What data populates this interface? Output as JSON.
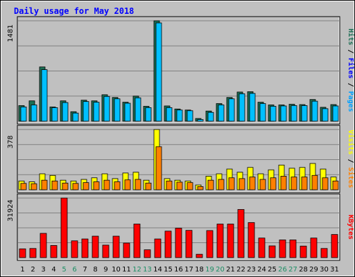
{
  "chart_data": {
    "type": "bar",
    "title": "Daily usage for May 2018",
    "days": [
      "1",
      "2",
      "3",
      "4",
      "5",
      "6",
      "7",
      "8",
      "9",
      "10",
      "11",
      "12",
      "13",
      "14",
      "15",
      "16",
      "17",
      "18",
      "19",
      "20",
      "21",
      "22",
      "23",
      "24",
      "25",
      "26",
      "27",
      "28",
      "29",
      "30",
      "31"
    ],
    "weekend_days": [
      "5",
      "6",
      "12",
      "13",
      "19",
      "20",
      "26",
      "27"
    ],
    "panels": [
      {
        "name": "hits-files-pages",
        "max_label": "1481",
        "ymax": 1481,
        "legend": [
          "Pages",
          "/",
          "Files",
          "/",
          "Hits"
        ],
        "series": [
          {
            "name": "Hits",
            "color": "#1c6e54",
            "values": [
              230,
              300,
              800,
              210,
              300,
              140,
              310,
              300,
              390,
              350,
              280,
              370,
              220,
              1481,
              225,
              180,
              165,
              40,
              150,
              260,
              350,
              430,
              435,
              280,
              240,
              240,
              250,
              245,
              320,
              205,
              245
            ]
          },
          {
            "name": "Files",
            "color": "#00c0ff",
            "values": [
              210,
              240,
              760,
              200,
              275,
              120,
              290,
              280,
              365,
              330,
              265,
              345,
              200,
              1450,
              200,
              165,
              155,
              25,
              130,
              240,
              330,
              405,
              410,
              260,
              220,
              225,
              230,
              230,
              295,
              185,
              225
            ]
          },
          {
            "name": "Pages",
            "color": "#0000ff",
            "values": []
          }
        ]
      },
      {
        "name": "visits-sites",
        "max_label": "378",
        "ymax": 378,
        "legend": [
          "Sites",
          "/",
          "Visits"
        ],
        "series": [
          {
            "name": "Visits",
            "color": "#ffff00",
            "values": [
              55,
              50,
              100,
              90,
              60,
              55,
              65,
              75,
              100,
              70,
              105,
              110,
              60,
              378,
              70,
              60,
              55,
              30,
              85,
              100,
              130,
              110,
              140,
              100,
              125,
              155,
              135,
              140,
              165,
              130,
              80
            ]
          },
          {
            "name": "Sites",
            "color": "#ff8000",
            "values": [
              40,
              38,
              60,
              55,
              42,
              40,
              45,
              50,
              60,
              50,
              62,
              65,
              42,
              270,
              55,
              48,
              45,
              20,
              60,
              65,
              75,
              70,
              80,
              65,
              75,
              85,
              80,
              80,
              90,
              75,
              55
            ]
          }
        ]
      },
      {
        "name": "kbytes",
        "max_label": "31924",
        "ymax": 31924,
        "legend": [
          "KBytes"
        ],
        "series": [
          {
            "name": "KBytes",
            "color": "#ff0000",
            "values": [
              4700,
              4900,
              13000,
              6500,
              31924,
              9000,
              10000,
              11500,
              6700,
              11500,
              7800,
              18000,
              4200,
              10000,
              14200,
              15800,
              14600,
              1800,
              14500,
              18000,
              18000,
              25800,
              18800,
              10500,
              6300,
              9500,
              9500,
              6200,
              10500,
              4900,
              12400
            ]
          }
        ]
      }
    ]
  }
}
